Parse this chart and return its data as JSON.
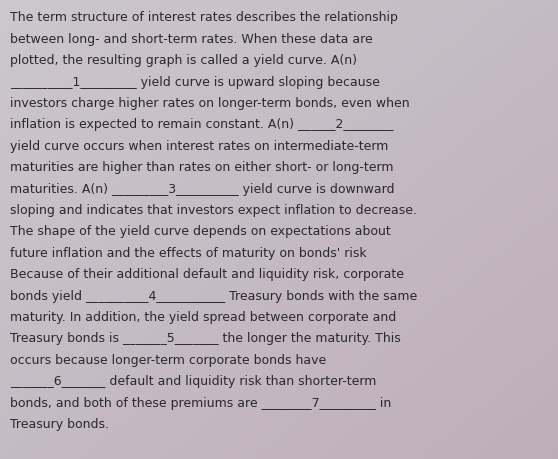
{
  "background_color_tl": "#ccc8cc",
  "background_color_br": "#c8b8c4",
  "text_color": "#2a2a2a",
  "font_size": 9.0,
  "text_lines": [
    "The term structure of interest rates describes the relationship",
    "between long- and short-term rates. When these data are",
    "plotted, the resulting graph is called a yield curve. A(n)",
    "__________1_________ yield curve is upward sloping because",
    "investors charge higher rates on longer-term bonds, even when",
    "inflation is expected to remain constant. A(n) ______2________",
    "yield curve occurs when interest rates on intermediate-term",
    "maturities are higher than rates on either short- or long-term",
    "maturities. A(n) _________3__________ yield curve is downward",
    "sloping and indicates that investors expect inflation to decrease.",
    "The shape of the yield curve depends on expectations about",
    "future inflation and the effects of maturity on bonds' risk",
    "Because of their additional default and liquidity risk, corporate",
    "bonds yield __________4___________ Treasury bonds with the same",
    "maturity. In addition, the yield spread between corporate and",
    "Treasury bonds is _______5_______ the longer the maturity. This",
    "occurs because longer-term corporate bonds have",
    "_______6_______ default and liquidity risk than shorter-term",
    "bonds, and both of these premiums are ________7_________ in",
    "Treasury bonds."
  ],
  "fig_width": 5.58,
  "fig_height": 4.6,
  "dpi": 100
}
